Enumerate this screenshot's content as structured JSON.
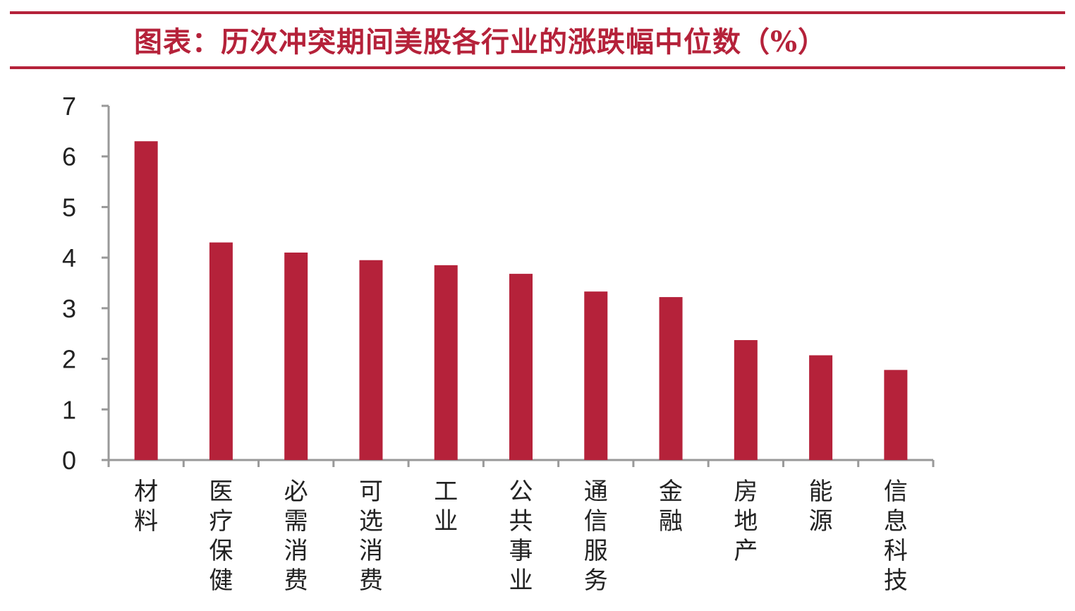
{
  "title": "图表：历次冲突期间美股各行业的涨跌幅中位数（%）",
  "colors": {
    "bar": "#b5223a",
    "accent": "#b5223a",
    "axis": "#999999"
  },
  "chart_data": {
    "type": "bar",
    "title": "图表：历次冲突期间美股各行业的涨跌幅中位数（%）",
    "categories": [
      "材料",
      "医疗保健",
      "必需消费",
      "可选消费",
      "工业",
      "公共事业",
      "通信服务",
      "金融",
      "房地产",
      "能源",
      "信息科技"
    ],
    "values": [
      6.3,
      4.3,
      4.1,
      3.95,
      3.85,
      3.68,
      3.33,
      3.22,
      2.37,
      2.07,
      1.78
    ],
    "xlabel": "",
    "ylabel": "",
    "ylim": [
      0,
      7
    ],
    "yticks": [
      "0",
      "1",
      "2",
      "3",
      "4",
      "5",
      "6",
      "7"
    ],
    "grid": false,
    "legend": "none"
  }
}
